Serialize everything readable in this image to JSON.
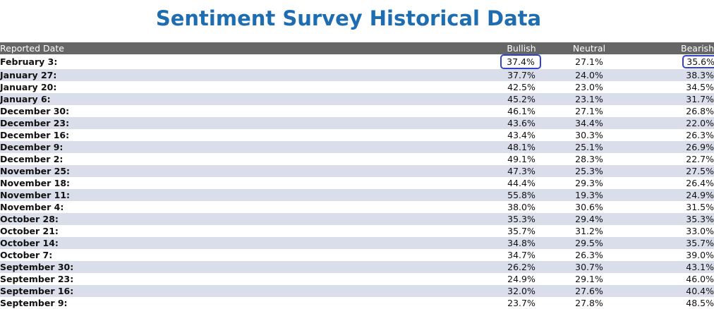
{
  "title": "Sentiment Survey Historical Data",
  "columns": {
    "date": "Reported Date",
    "bullish": "Bullish",
    "neutral": "Neutral",
    "bearish": "Bearish"
  },
  "rows": [
    {
      "date": "February 3:",
      "bullish": "37.4%",
      "neutral": "27.1%",
      "bearish": "35.6%"
    },
    {
      "date": "January 27:",
      "bullish": "37.7%",
      "neutral": "24.0%",
      "bearish": "38.3%"
    },
    {
      "date": "January 20:",
      "bullish": "42.5%",
      "neutral": "23.0%",
      "bearish": "34.5%"
    },
    {
      "date": "January 6:",
      "bullish": "45.2%",
      "neutral": "23.1%",
      "bearish": "31.7%"
    },
    {
      "date": "December 30:",
      "bullish": "46.1%",
      "neutral": "27.1%",
      "bearish": "26.8%"
    },
    {
      "date": "December 23:",
      "bullish": "43.6%",
      "neutral": "34.4%",
      "bearish": "22.0%"
    },
    {
      "date": "December 16:",
      "bullish": "43.4%",
      "neutral": "30.3%",
      "bearish": "26.3%"
    },
    {
      "date": "December 9:",
      "bullish": "48.1%",
      "neutral": "25.1%",
      "bearish": "26.9%"
    },
    {
      "date": "December 2:",
      "bullish": "49.1%",
      "neutral": "28.3%",
      "bearish": "22.7%"
    },
    {
      "date": "November 25:",
      "bullish": "47.3%",
      "neutral": "25.3%",
      "bearish": "27.5%"
    },
    {
      "date": "November 18:",
      "bullish": "44.4%",
      "neutral": "29.3%",
      "bearish": "26.4%"
    },
    {
      "date": "November 11:",
      "bullish": "55.8%",
      "neutral": "19.3%",
      "bearish": "24.9%"
    },
    {
      "date": "November 4:",
      "bullish": "38.0%",
      "neutral": "30.6%",
      "bearish": "31.5%"
    },
    {
      "date": "October 28:",
      "bullish": "35.3%",
      "neutral": "29.4%",
      "bearish": "35.3%"
    },
    {
      "date": "October 21:",
      "bullish": "35.7%",
      "neutral": "31.2%",
      "bearish": "33.0%"
    },
    {
      "date": "October 14:",
      "bullish": "34.8%",
      "neutral": "29.5%",
      "bearish": "35.7%"
    },
    {
      "date": "October 7:",
      "bullish": "34.7%",
      "neutral": "26.3%",
      "bearish": "39.0%"
    },
    {
      "date": "September 30:",
      "bullish": "26.2%",
      "neutral": "30.7%",
      "bearish": "43.1%"
    },
    {
      "date": "September 23:",
      "bullish": "24.9%",
      "neutral": "29.1%",
      "bearish": "46.0%"
    },
    {
      "date": "September 16:",
      "bullish": "32.0%",
      "neutral": "27.6%",
      "bearish": "40.4%"
    },
    {
      "date": "September 9:",
      "bullish": "23.7%",
      "neutral": "27.8%",
      "bearish": "48.5%"
    }
  ],
  "highlight_color": "#3344cc",
  "title_color": "#1e6db0"
}
